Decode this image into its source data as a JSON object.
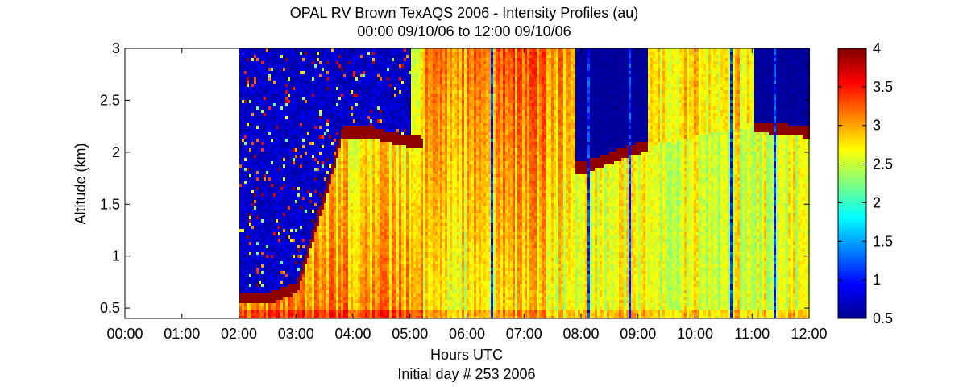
{
  "chart_data": {
    "type": "heatmap",
    "title": "OPAL RV Brown TexAQS 2006 - Intensity Profiles (au)",
    "subtitle": "00:00 09/10/06 to 12:00 09/10/06",
    "xlabel": "Hours UTC",
    "xlabel2": "Initial day # 253  2006",
    "ylabel": "Altitude (km)",
    "xlim": [
      0,
      12
    ],
    "ylim": [
      0.4,
      3
    ],
    "x_ticks": [
      {
        "value": 0,
        "label": "00:00"
      },
      {
        "value": 1,
        "label": "01:00"
      },
      {
        "value": 2,
        "label": "02:00"
      },
      {
        "value": 3,
        "label": "03:00"
      },
      {
        "value": 4,
        "label": "04:00"
      },
      {
        "value": 5,
        "label": "05:00"
      },
      {
        "value": 6,
        "label": "06:00"
      },
      {
        "value": 7,
        "label": "07:00"
      },
      {
        "value": 8,
        "label": "08:00"
      },
      {
        "value": 9,
        "label": "09:00"
      },
      {
        "value": 10,
        "label": "10:00"
      },
      {
        "value": 11,
        "label": "11:00"
      },
      {
        "value": 12,
        "label": "12:00"
      }
    ],
    "y_ticks": [
      {
        "value": 0.5,
        "label": "0.5"
      },
      {
        "value": 1,
        "label": "1"
      },
      {
        "value": 1.5,
        "label": "1.5"
      },
      {
        "value": 2,
        "label": "2"
      },
      {
        "value": 2.5,
        "label": "2.5"
      },
      {
        "value": 3,
        "label": "3"
      }
    ],
    "colorbar": {
      "range": [
        0.5,
        4
      ],
      "colormap": "jet",
      "ticks": [
        {
          "value": 0.5,
          "label": "0.5"
        },
        {
          "value": 1,
          "label": "1"
        },
        {
          "value": 1.5,
          "label": "1.5"
        },
        {
          "value": 2,
          "label": "2"
        },
        {
          "value": 2.5,
          "label": "2.5"
        },
        {
          "value": 3,
          "label": "3"
        },
        {
          "value": 3.5,
          "label": "3.5"
        },
        {
          "value": 4,
          "label": "4"
        }
      ]
    },
    "data_start_hour": 2.0,
    "boundary_layer_top_km": [
      {
        "hour": 2.5,
        "km": 0.6
      },
      {
        "hour": 3.0,
        "km": 0.7
      },
      {
        "hour": 3.5,
        "km": 1.6
      },
      {
        "hour": 3.8,
        "km": 2.2
      },
      {
        "hour": 4.3,
        "km": 2.2
      },
      {
        "hour": 4.6,
        "km": 2.15
      },
      {
        "hour": 5.0,
        "km": 2.1
      },
      {
        "hour": 8.0,
        "km": 1.85
      },
      {
        "hour": 8.5,
        "km": 1.95
      },
      {
        "hour": 9.0,
        "km": 2.05
      },
      {
        "hour": 11.0,
        "km": 2.25
      },
      {
        "hour": 12.0,
        "km": 2.2
      }
    ]
  }
}
